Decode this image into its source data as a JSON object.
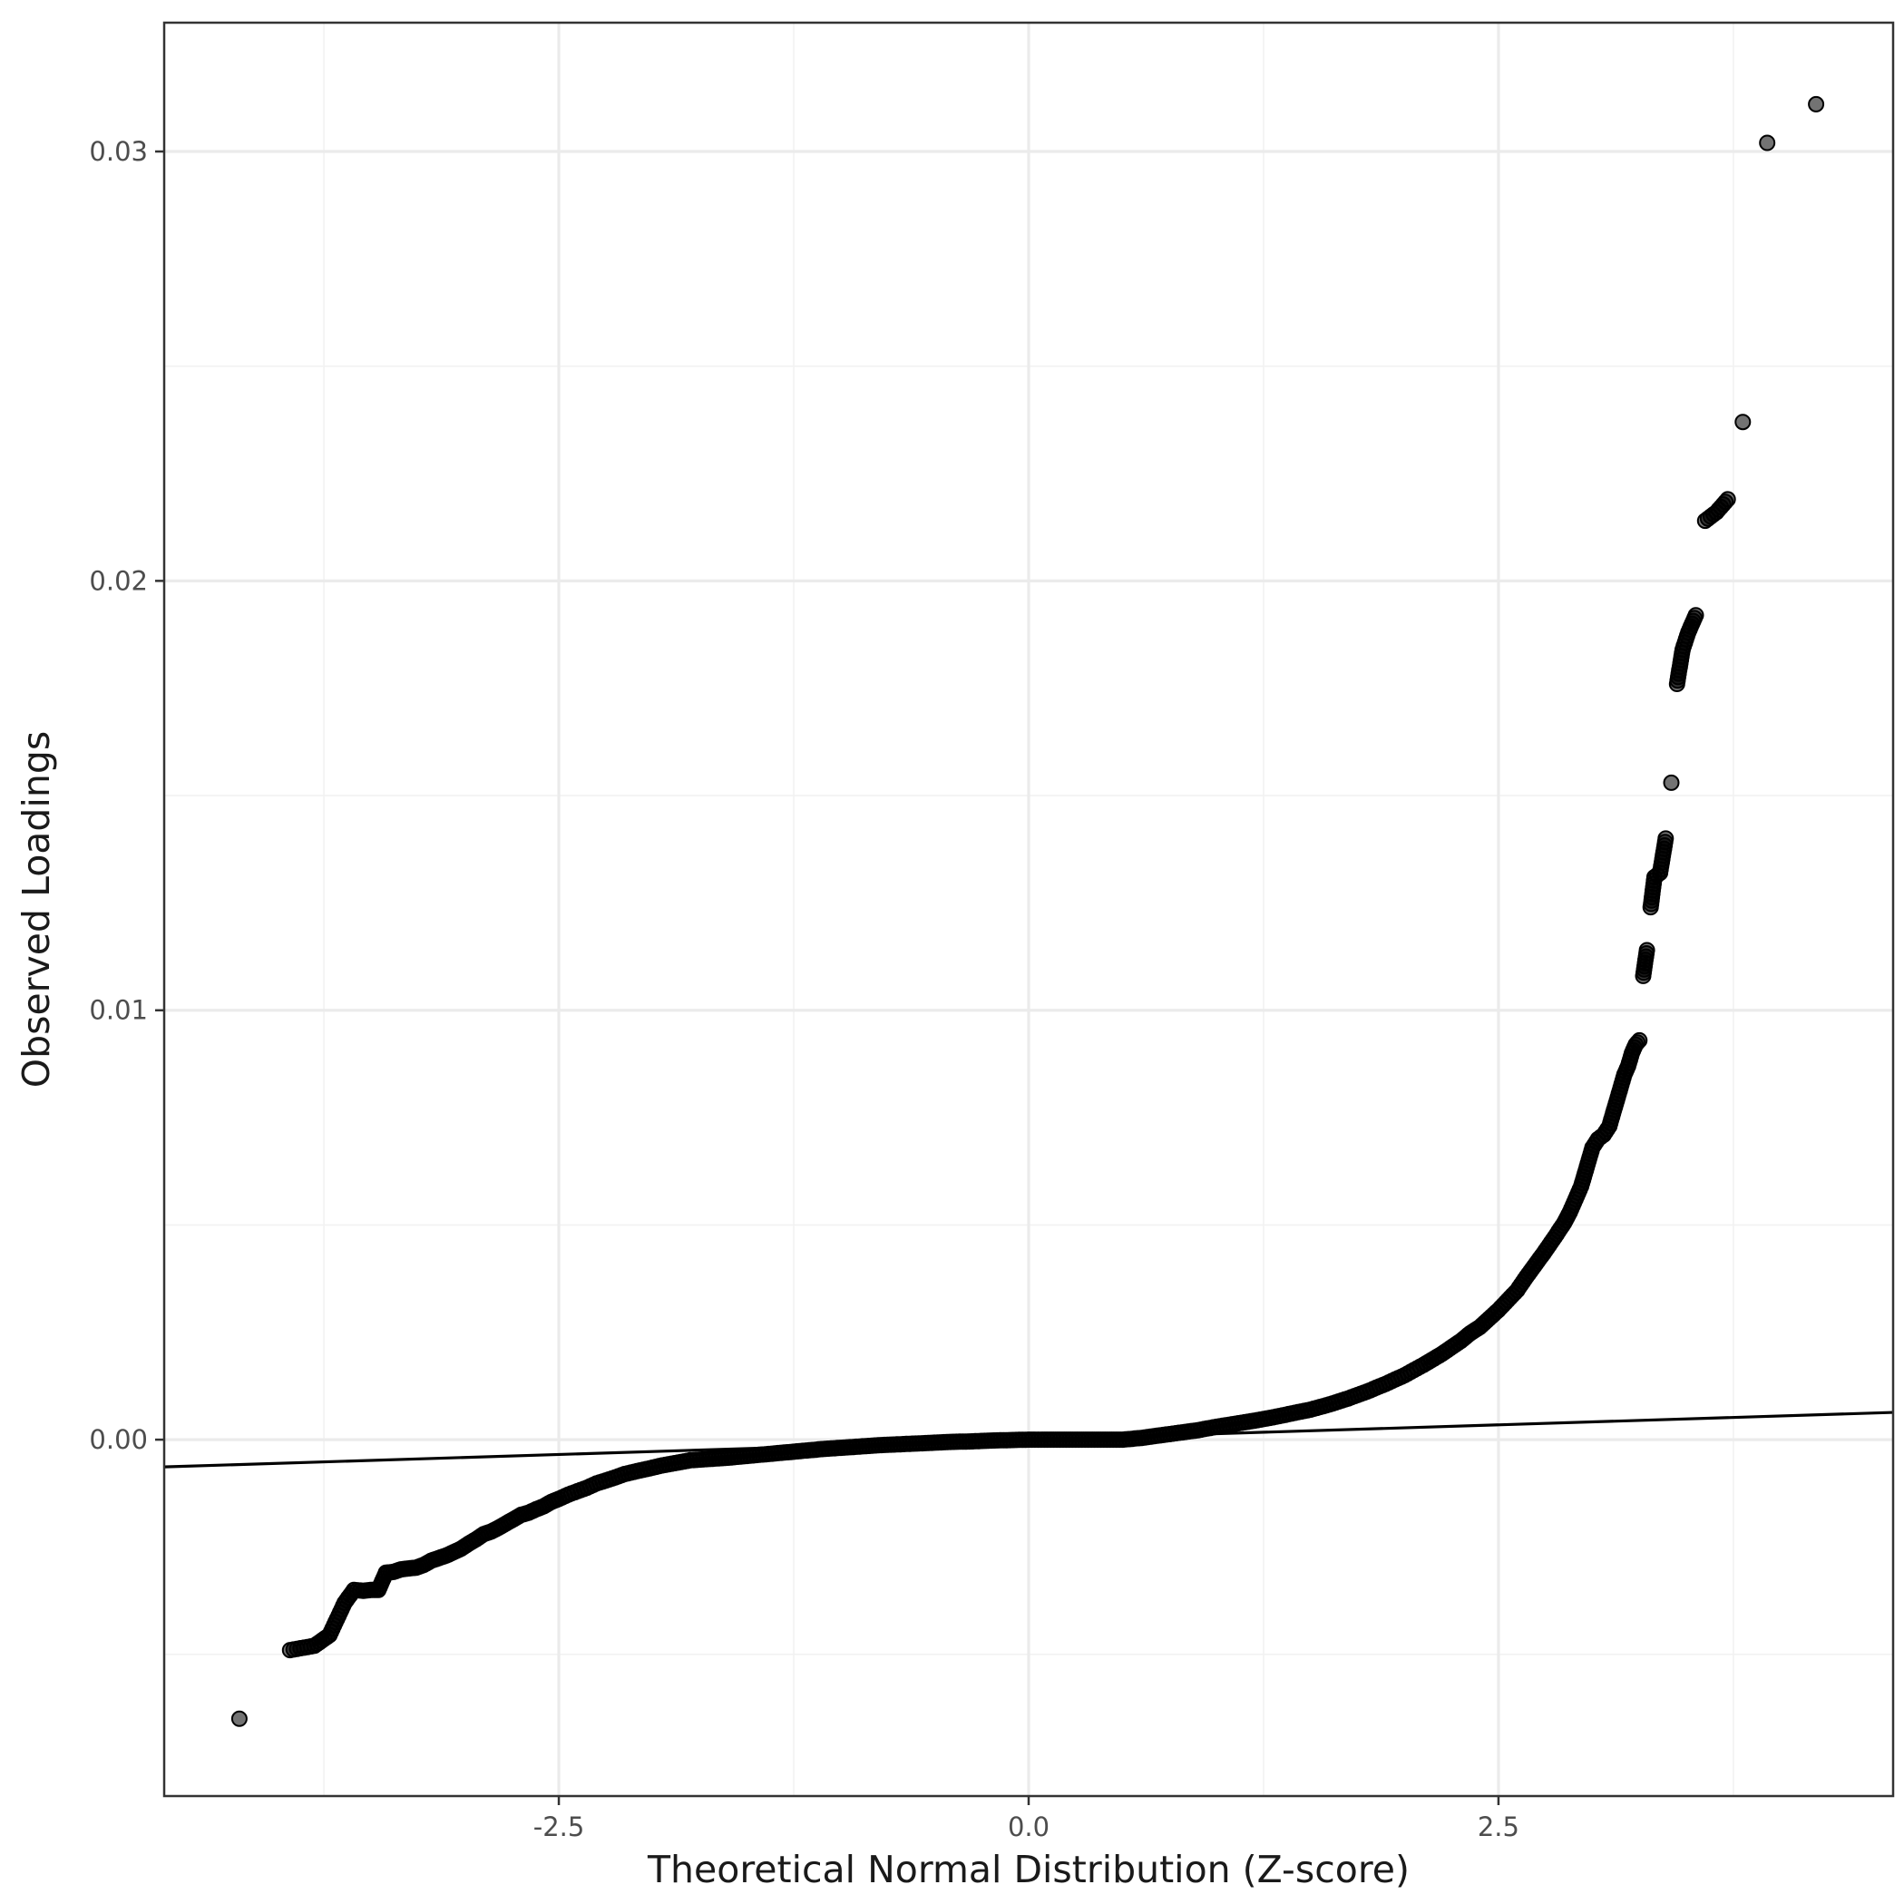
{
  "chart_data": {
    "type": "scatter",
    "title": "",
    "xlabel": "Theoretical Normal Distribution (Z-score)",
    "ylabel": "Observed Loadings",
    "xlim": [
      -4.6,
      4.6
    ],
    "ylim": [
      -0.0083,
      0.033
    ],
    "x_ticks": [
      -2.5,
      0.0,
      2.5
    ],
    "x_tick_labels": [
      "-2.5",
      "0.0",
      "2.5"
    ],
    "x_minor_ticks": [
      -3.75,
      -1.25,
      1.25,
      3.75
    ],
    "y_ticks": [
      0.0,
      0.01,
      0.02,
      0.03
    ],
    "y_tick_labels": [
      "0.00",
      "0.01",
      "0.02",
      "0.03"
    ],
    "y_minor_ticks": [
      -0.005,
      0.005,
      0.015,
      0.025
    ],
    "grid": true,
    "reference_line": {
      "intercept": 0.0,
      "slope": 0.000138
    },
    "series": [
      {
        "points": [
          [
            -4.2,
            -0.0065
          ],
          [
            -3.93,
            -0.0049
          ],
          [
            -3.8,
            -0.0048
          ],
          [
            -3.72,
            -0.00455
          ],
          [
            -3.64,
            -0.0038
          ],
          [
            -3.59,
            -0.0035
          ],
          [
            -3.54,
            -0.00352
          ],
          [
            -3.5,
            -0.0035
          ],
          [
            -3.46,
            -0.0035
          ],
          [
            -3.42,
            -0.0031
          ],
          [
            -3.38,
            -0.00308
          ],
          [
            -3.34,
            -0.00302
          ],
          [
            -3.3,
            -0.003
          ],
          [
            -3.26,
            -0.00298
          ],
          [
            -3.22,
            -0.00292
          ],
          [
            -3.18,
            -0.00282
          ],
          [
            -3.14,
            -0.00276
          ],
          [
            -3.1,
            -0.0027
          ],
          [
            -3.06,
            -0.00262
          ],
          [
            -3.02,
            -0.00254
          ],
          [
            -2.98,
            -0.00242
          ],
          [
            -2.94,
            -0.00232
          ],
          [
            -2.9,
            -0.0022
          ],
          [
            -2.86,
            -0.00214
          ],
          [
            -2.82,
            -0.00205
          ],
          [
            -2.78,
            -0.00195
          ],
          [
            -2.74,
            -0.00185
          ],
          [
            -2.7,
            -0.00175
          ],
          [
            -2.66,
            -0.0017
          ],
          [
            -2.62,
            -0.00162
          ],
          [
            -2.58,
            -0.00155
          ],
          [
            -2.54,
            -0.00145
          ],
          [
            -2.5,
            -0.00138
          ],
          [
            -2.45,
            -0.00128
          ],
          [
            -2.4,
            -0.0012
          ],
          [
            -2.35,
            -0.00112
          ],
          [
            -2.3,
            -0.00102
          ],
          [
            -2.25,
            -0.00095
          ],
          [
            -2.2,
            -0.00088
          ],
          [
            -2.15,
            -0.0008
          ],
          [
            -2.1,
            -0.00075
          ],
          [
            -2.05,
            -0.0007
          ],
          [
            -2.0,
            -0.00065
          ],
          [
            -1.95,
            -0.0006
          ],
          [
            -1.9,
            -0.00056
          ],
          [
            -1.85,
            -0.00052
          ],
          [
            -1.8,
            -0.00048
          ],
          [
            -1.7,
            -0.00045
          ],
          [
            -1.6,
            -0.00042
          ],
          [
            -1.5,
            -0.00038
          ],
          [
            -1.4,
            -0.00034
          ],
          [
            -1.3,
            -0.0003
          ],
          [
            -1.2,
            -0.00026
          ],
          [
            -1.1,
            -0.00022
          ],
          [
            -1.0,
            -0.00019
          ],
          [
            -0.9,
            -0.00016
          ],
          [
            -0.8,
            -0.00013
          ],
          [
            -0.7,
            -0.00011
          ],
          [
            -0.6,
            -9e-05
          ],
          [
            -0.5,
            -7e-05
          ],
          [
            -0.4,
            -5e-05
          ],
          [
            -0.3,
            -4e-05
          ],
          [
            -0.2,
            -2e-05
          ],
          [
            -0.1,
            -1e-05
          ],
          [
            0.0,
            0.0
          ],
          [
            0.1,
            0.0
          ],
          [
            0.2,
            0.0
          ],
          [
            0.3,
            0.0
          ],
          [
            0.4,
            0.0
          ],
          [
            0.5,
            0.0
          ],
          [
            0.6,
            4e-05
          ],
          [
            0.7,
            0.0001
          ],
          [
            0.8,
            0.00016
          ],
          [
            0.9,
            0.00022
          ],
          [
            1.0,
            0.0003
          ],
          [
            1.1,
            0.00037
          ],
          [
            1.2,
            0.00044
          ],
          [
            1.3,
            0.00052
          ],
          [
            1.4,
            0.00061
          ],
          [
            1.5,
            0.0007
          ],
          [
            1.6,
            0.00082
          ],
          [
            1.7,
            0.00096
          ],
          [
            1.8,
            0.00112
          ],
          [
            1.9,
            0.0013
          ],
          [
            2.0,
            0.0015
          ],
          [
            2.1,
            0.00174
          ],
          [
            2.2,
            0.002
          ],
          [
            2.3,
            0.0023
          ],
          [
            2.35,
            0.00248
          ],
          [
            2.4,
            0.00262
          ],
          [
            2.45,
            0.00282
          ],
          [
            2.5,
            0.00302
          ],
          [
            2.55,
            0.00325
          ],
          [
            2.6,
            0.00348
          ],
          [
            2.65,
            0.0038
          ],
          [
            2.7,
            0.0041
          ],
          [
            2.75,
            0.0044
          ],
          [
            2.8,
            0.00472
          ],
          [
            2.85,
            0.00505
          ],
          [
            2.88,
            0.0053
          ],
          [
            2.91,
            0.0056
          ],
          [
            2.94,
            0.0059
          ],
          [
            2.96,
            0.0062
          ],
          [
            2.98,
            0.0065
          ],
          [
            3.0,
            0.0068
          ],
          [
            3.03,
            0.007
          ],
          [
            3.06,
            0.0071
          ],
          [
            3.09,
            0.0073
          ],
          [
            3.11,
            0.0076
          ],
          [
            3.13,
            0.0079
          ],
          [
            3.15,
            0.0082
          ],
          [
            3.17,
            0.0085
          ],
          [
            3.19,
            0.0087
          ],
          [
            3.21,
            0.009
          ],
          [
            3.23,
            0.0092
          ],
          [
            3.25,
            0.0093
          ],
          [
            3.27,
            0.0108
          ],
          [
            3.29,
            0.0114
          ],
          [
            3.31,
            0.0124
          ],
          [
            3.33,
            0.0131
          ],
          [
            3.36,
            0.0132
          ],
          [
            3.39,
            0.014
          ],
          [
            3.42,
            0.0153
          ],
          [
            3.45,
            0.0176
          ],
          [
            3.48,
            0.0184
          ],
          [
            3.51,
            0.0188
          ],
          [
            3.55,
            0.0192
          ],
          [
            3.6,
            0.0214
          ],
          [
            3.66,
            0.0216
          ],
          [
            3.72,
            0.0219
          ],
          [
            3.8,
            0.0237
          ],
          [
            3.93,
            0.0302
          ],
          [
            4.19,
            0.0311
          ]
        ]
      }
    ]
  }
}
